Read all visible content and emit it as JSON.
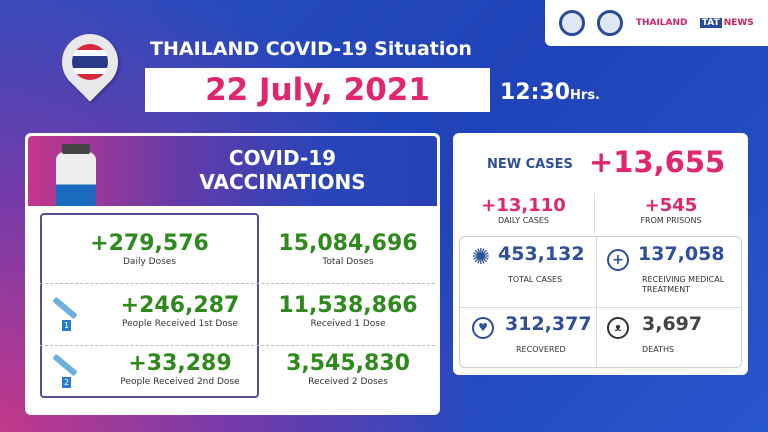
{
  "logos": {
    "seal1": "government-seal",
    "seal2": "ministry-seal",
    "amazing_thailand": "THAILAND",
    "tat_news": "NEWS",
    "tat": "TAT"
  },
  "header": {
    "title": "THAILAND COVID-19 Situation",
    "date": "22 July, 2021",
    "time": "12:30",
    "time_unit": "Hrs."
  },
  "vaccinations": {
    "title_line1": "COVID-19",
    "title_line2": "VACCINATIONS",
    "daily_doses": {
      "value": "+279,576",
      "label": "Daily Doses"
    },
    "total_doses": {
      "value": "15,084,696",
      "label": "Total Doses"
    },
    "first_dose_daily": {
      "value": "+246,287",
      "label": "People Received 1st Dose",
      "badge": "1"
    },
    "first_dose_total": {
      "value": "11,538,866",
      "label": "Received 1 Dose"
    },
    "second_dose_daily": {
      "value": "+33,289",
      "label": "People Received 2nd Dose",
      "badge": "2"
    },
    "second_dose_total": {
      "value": "3,545,830",
      "label": "Received 2 Doses"
    }
  },
  "cases": {
    "new_cases_label": "NEW CASES",
    "new_cases": "+13,655",
    "daily": {
      "value": "+13,110",
      "label": "DAILY CASES"
    },
    "prisons": {
      "value": "+545",
      "label": "FROM PRISONS"
    },
    "total": {
      "value": "453,132",
      "label": "TOTAL CASES"
    },
    "treatment": {
      "value": "137,058",
      "label1": "RECEIVING MEDICAL",
      "label2": "TREATMENT"
    },
    "recovered": {
      "value": "312,377",
      "label": "RECOVERED"
    },
    "deaths": {
      "value": "3,697",
      "label": "DEATHS"
    }
  },
  "colors": {
    "pink": "#e0266f",
    "green": "#2e8a1c",
    "blue": "#2f4f9a"
  }
}
